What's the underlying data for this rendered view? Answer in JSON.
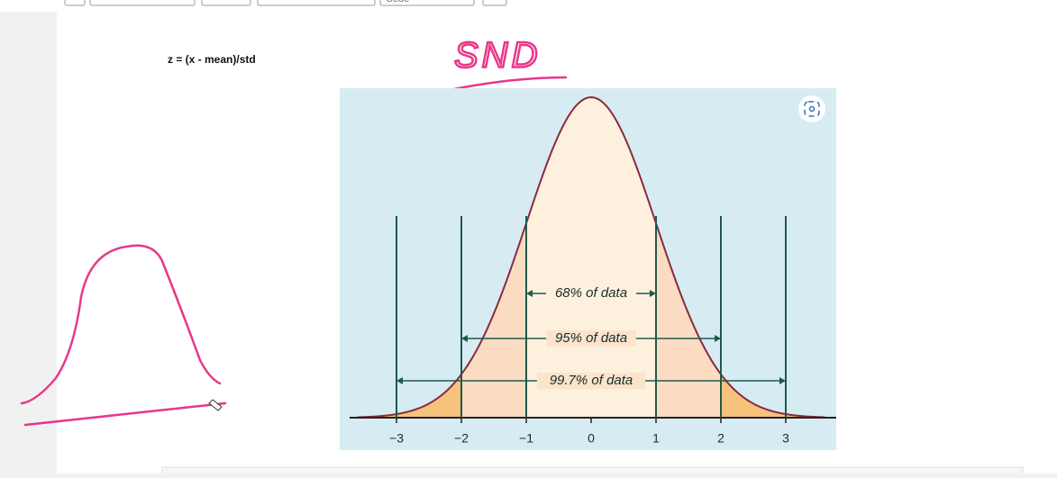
{
  "toolbar": {
    "cell_type": "Code"
  },
  "cell": {
    "formula": "z = (x - mean)/std"
  },
  "annotation": {
    "handwriting": "SND"
  },
  "figure": {
    "labels": [
      "68% of data",
      "95% of data",
      "99.7% of data"
    ],
    "ticks": [
      "−3",
      "−2",
      "−1",
      "0",
      "1",
      "2",
      "3"
    ]
  }
}
